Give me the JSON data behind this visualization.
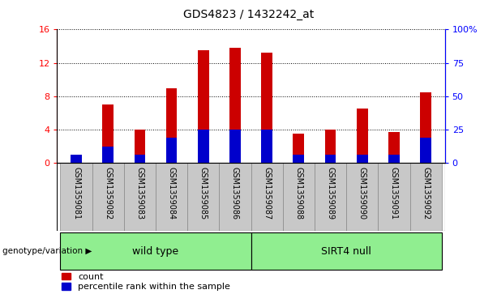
{
  "title": "GDS4823 / 1432242_at",
  "samples": [
    "GSM1359081",
    "GSM1359082",
    "GSM1359083",
    "GSM1359084",
    "GSM1359085",
    "GSM1359086",
    "GSM1359087",
    "GSM1359088",
    "GSM1359089",
    "GSM1359090",
    "GSM1359091",
    "GSM1359092"
  ],
  "count_values": [
    1.0,
    7.0,
    4.0,
    9.0,
    13.5,
    13.8,
    13.2,
    3.5,
    4.0,
    6.5,
    3.7,
    8.5
  ],
  "percentile_values": [
    6.25,
    12.5,
    6.25,
    18.75,
    25.0,
    25.0,
    25.0,
    6.25,
    6.25,
    6.25,
    6.25,
    18.75
  ],
  "bar_color": "#CC0000",
  "percentile_color": "#0000CC",
  "ylim_left": [
    0,
    16
  ],
  "ylim_right": [
    0,
    100
  ],
  "yticks_left": [
    0,
    4,
    8,
    12,
    16
  ],
  "yticks_right": [
    0,
    25,
    50,
    75,
    100
  ],
  "ytick_labels_right": [
    "0",
    "25",
    "50",
    "75",
    "100%"
  ],
  "genotype_label": "genotype/variation",
  "legend_count": "count",
  "legend_percentile": "percentile rank within the sample",
  "bar_width": 0.35,
  "wt_label": "wild type",
  "sn_label": "SIRT4 null",
  "group_color": "#90EE90",
  "label_area_color": "#c8c8c8",
  "title_fontsize": 10,
  "axis_fontsize": 8,
  "label_fontsize": 7,
  "legend_fontsize": 8
}
